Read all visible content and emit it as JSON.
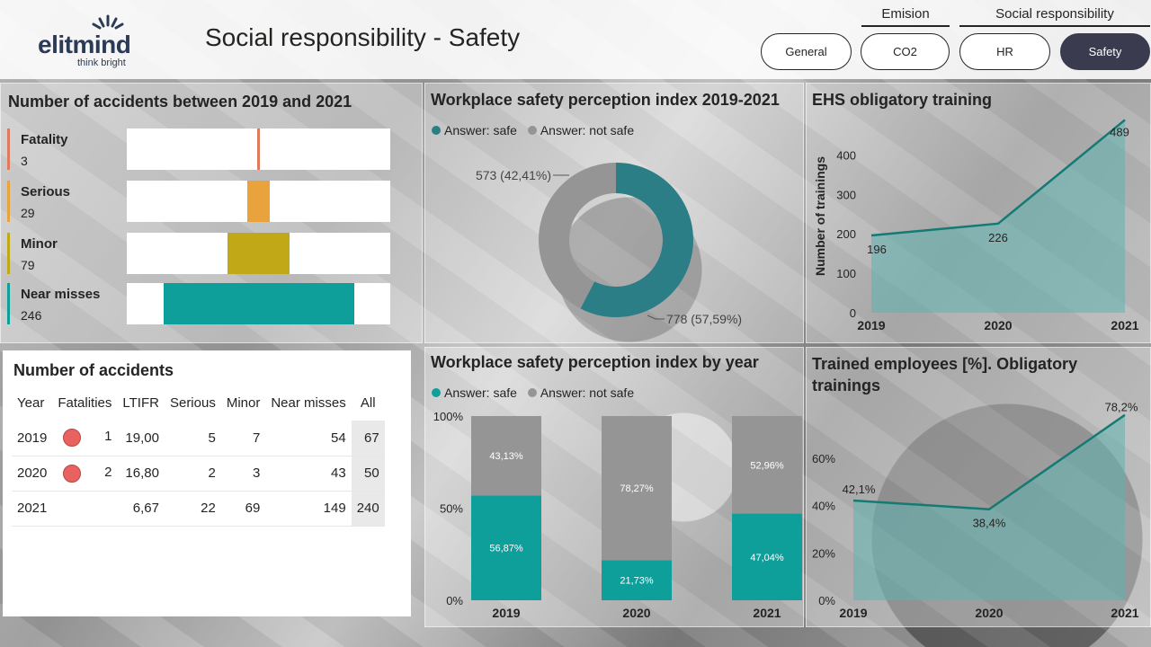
{
  "header": {
    "logo_word": "elitmind",
    "logo_tag": "think bright",
    "title": "Social responsibility - Safety",
    "groups": [
      {
        "label": "Emision"
      },
      {
        "label": "Social responsibility"
      }
    ],
    "nav": [
      {
        "label": "General",
        "active": false
      },
      {
        "label": "CO2",
        "active": false
      },
      {
        "label": "HR",
        "active": false
      },
      {
        "label": "Safety",
        "active": true
      }
    ]
  },
  "accidents_card": {
    "title": "Number of accidents between 2019 and 2021",
    "items": [
      {
        "name": "Fatality",
        "value": 3,
        "color": "#e07a5f"
      },
      {
        "name": "Serious",
        "value": 29,
        "color": "#e8a33d"
      },
      {
        "name": "Minor",
        "value": 79,
        "color": "#c1a816"
      },
      {
        "name": "Near misses",
        "value": 246,
        "color": "#0e9f9a"
      }
    ]
  },
  "accidents_table": {
    "title": "Number of accidents",
    "headers": [
      "Year",
      "Fatalities",
      "LTIFR",
      "Serious",
      "Minor",
      "Near misses",
      "All"
    ],
    "rows": [
      {
        "year": "2019",
        "fatal_dot": true,
        "fatalities": "1",
        "ltifr": "19,00",
        "serious": "5",
        "minor": "7",
        "near": "54",
        "all": "67"
      },
      {
        "year": "2020",
        "fatal_dot": true,
        "fatalities": "2",
        "ltifr": "16,80",
        "serious": "2",
        "minor": "3",
        "near": "43",
        "all": "50"
      },
      {
        "year": "2021",
        "fatal_dot": false,
        "fatalities": "",
        "ltifr": "6,67",
        "serious": "22",
        "minor": "69",
        "near": "149",
        "all": "240"
      }
    ]
  },
  "colors": {
    "safe": "#2b7d86",
    "not_safe": "#959595",
    "teal": "#0e9f9a",
    "area": "#5fb3b0",
    "line": "#147a73"
  },
  "chart_data": [
    {
      "type": "pie",
      "title": "Workplace safety perception index 2019-2021",
      "legend": [
        "Answer: safe",
        "Answer: not safe"
      ],
      "slices": [
        {
          "label": "Answer: safe",
          "value": 778,
          "display": "778 (57,59%)"
        },
        {
          "label": "Answer: not safe",
          "value": 573,
          "display": "573 (42,41%)"
        }
      ]
    },
    {
      "type": "area",
      "title": "EHS obligatory training",
      "ylabel": "Number of trainings",
      "x": [
        "2019",
        "2020",
        "2021"
      ],
      "values": [
        196,
        226,
        489
      ],
      "ylim": [
        0,
        500
      ],
      "yticks": [
        "0",
        "100",
        "200",
        "300",
        "400"
      ],
      "labels": [
        "196",
        "226",
        "489"
      ]
    },
    {
      "type": "bar",
      "title": "Workplace safety perception index by year",
      "legend": [
        "Answer: safe",
        "Answer: not safe"
      ],
      "categories": [
        "2019",
        "2020",
        "2021"
      ],
      "series": [
        {
          "name": "Answer: safe",
          "values": [
            56.87,
            21.73,
            47.04
          ],
          "labels": [
            "56,87%",
            "21,73%",
            "47,04%"
          ]
        },
        {
          "name": "Answer: not safe",
          "values": [
            43.13,
            78.27,
            52.96
          ],
          "labels": [
            "43,13%",
            "78,27%",
            "52,96%"
          ]
        }
      ],
      "yticks": [
        "0%",
        "50%",
        "100%"
      ],
      "ylim": [
        0,
        100
      ]
    },
    {
      "type": "area",
      "title": "Trained employees [%]. Obligatory trainings",
      "x": [
        "2019",
        "2020",
        "2021"
      ],
      "values": [
        42.1,
        38.4,
        78.2
      ],
      "ylim": [
        0,
        80
      ],
      "yticks": [
        "0%",
        "20%",
        "40%",
        "60%"
      ],
      "labels": [
        "42,1%",
        "38,4%",
        "78,2%"
      ]
    }
  ]
}
